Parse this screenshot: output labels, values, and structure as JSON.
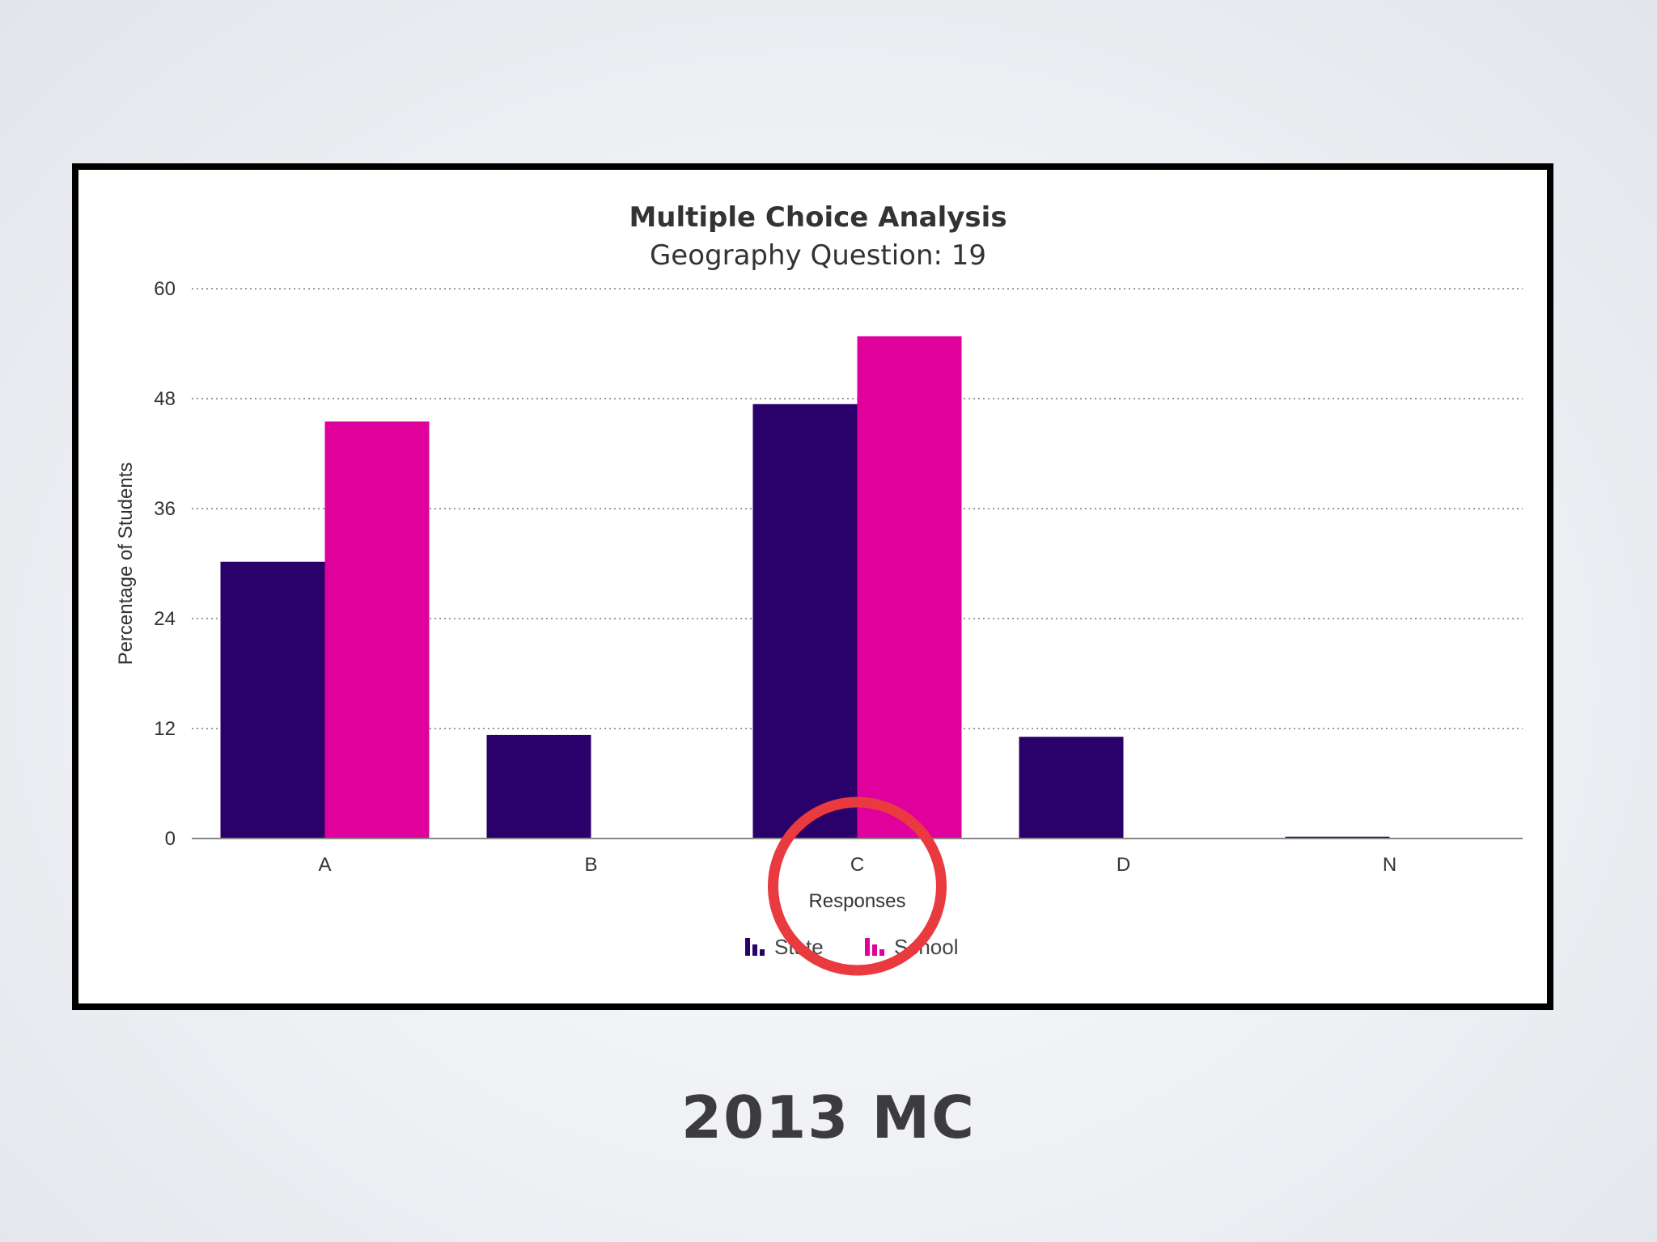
{
  "caption": "2013 MC",
  "colors": {
    "state": "#2a006b",
    "school": "#e0009b",
    "highlight_circle": "#e83a3f"
  },
  "chart_data": {
    "type": "bar",
    "title": "Multiple Choice Analysis",
    "subtitle": "Geography Question: 19",
    "xlabel": "Responses",
    "ylabel": "Percentage of Students",
    "categories": [
      "A",
      "B",
      "C",
      "D",
      "N"
    ],
    "series": [
      {
        "name": "State",
        "values": [
          30.2,
          11.3,
          47.4,
          11.1,
          0.2
        ]
      },
      {
        "name": "School",
        "values": [
          45.5,
          0,
          54.8,
          0,
          0
        ]
      }
    ],
    "ylim": [
      0,
      60
    ],
    "yticks": [
      "0",
      "12",
      "24",
      "36",
      "48",
      "60"
    ],
    "grid": true,
    "legend": "bottom-center",
    "annotation": {
      "type": "circle",
      "category": "C",
      "color": "#e83a3f"
    }
  }
}
